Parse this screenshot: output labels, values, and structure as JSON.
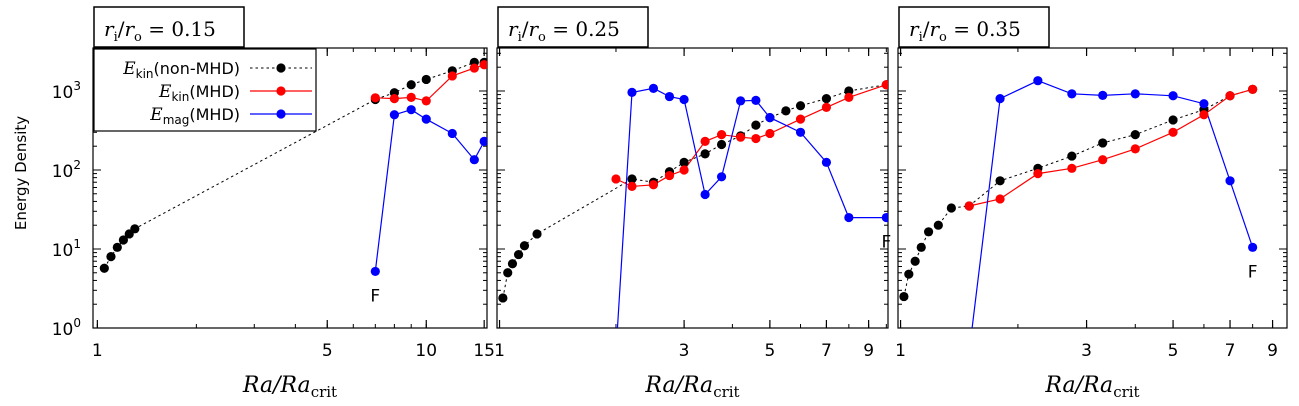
{
  "figure": {
    "ylabel": "Energy Density",
    "xlabel": {
      "main": "Ra/Ra",
      "sub": "crit"
    }
  },
  "legend": {
    "entries": [
      {
        "sym": "E",
        "sub": "kin",
        "tail": "(non-MHD)",
        "color": "#000000",
        "style": "dotted"
      },
      {
        "sym": "E",
        "sub": "kin",
        "tail": "(MHD)",
        "color": "#ff0000",
        "style": "solid"
      },
      {
        "sym": "E",
        "sub": "mag",
        "tail": "(MHD)",
        "color": "#0000ff",
        "style": "solid"
      }
    ]
  },
  "chart_data": [
    {
      "type": "line",
      "title": {
        "num": "r",
        "num_sub": "i",
        "den": "r",
        "den_sub": "o",
        "value": "= 0.15"
      },
      "xscale": "log",
      "yscale": "log",
      "xlim": [
        0.97,
        15.3
      ],
      "ylim": [
        1,
        3500
      ],
      "xticks": [
        {
          "v": 1,
          "label": "1"
        },
        {
          "v": 5,
          "label": "5"
        },
        {
          "v": 10,
          "label": "10"
        },
        {
          "v": 15,
          "label": "15"
        }
      ],
      "yticks": [
        {
          "v": 1,
          "e": "0"
        },
        {
          "v": 10,
          "e": "1"
        },
        {
          "v": 100,
          "e": "2"
        },
        {
          "v": 1000,
          "e": "3"
        }
      ],
      "series": [
        {
          "name": "Ekin(non-MHD)",
          "color": "#000000",
          "style": "dotted",
          "x": [
            1.05,
            1.1,
            1.15,
            1.2,
            1.25,
            1.3,
            7,
            8,
            9,
            10,
            12,
            14,
            15
          ],
          "y": [
            5.7,
            8,
            10.5,
            13,
            15.5,
            18,
            780,
            950,
            1200,
            1400,
            1800,
            2300,
            2300
          ]
        },
        {
          "name": "Ekin(MHD)",
          "color": "#ff0000",
          "style": "solid",
          "x": [
            7,
            8,
            9,
            10,
            12,
            14,
            15
          ],
          "y": [
            820,
            800,
            830,
            750,
            1550,
            1950,
            2150
          ]
        },
        {
          "name": "Emag(MHD)",
          "color": "#0000ff",
          "style": "solid",
          "x": [
            7,
            8,
            9,
            10,
            12,
            14,
            15
          ],
          "y": [
            5.2,
            500,
            580,
            440,
            290,
            135,
            230
          ]
        }
      ],
      "annotations": [
        {
          "text": "F",
          "x": 7,
          "y": 5.2,
          "dy": 30
        }
      ]
    },
    {
      "type": "line",
      "title": {
        "num": "r",
        "num_sub": "i",
        "den": "r",
        "den_sub": "o",
        "value": "= 0.25"
      },
      "xscale": "log",
      "yscale": "log",
      "xlim": [
        0.985,
        10.1
      ],
      "ylim": [
        1,
        3500
      ],
      "xticks": [
        {
          "v": 1,
          "label": "1"
        },
        {
          "v": 3,
          "label": "3"
        },
        {
          "v": 5,
          "label": "5"
        },
        {
          "v": 7,
          "label": "7"
        },
        {
          "v": 9,
          "label": "9"
        }
      ],
      "yticks": [],
      "series": [
        {
          "name": "Ekin(non-MHD)",
          "color": "#000000",
          "style": "dotted",
          "x": [
            1.02,
            1.05,
            1.08,
            1.12,
            1.16,
            1.25,
            2.2,
            2.5,
            2.75,
            3,
            3.4,
            3.75,
            4.2,
            4.6,
            5,
            5.5,
            6,
            7,
            8,
            10
          ],
          "y": [
            2.4,
            5,
            6.5,
            8.5,
            11,
            15.5,
            77,
            70,
            95,
            125,
            160,
            210,
            270,
            370,
            460,
            560,
            650,
            800,
            1000,
            1200
          ]
        },
        {
          "name": "Ekin(MHD)",
          "color": "#ff0000",
          "style": "solid",
          "x": [
            2,
            2.2,
            2.5,
            2.75,
            3,
            3.4,
            3.75,
            4.2,
            4.6,
            5,
            6,
            7,
            8,
            10
          ],
          "y": [
            77,
            62,
            65,
            85,
            100,
            230,
            280,
            260,
            250,
            290,
            440,
            620,
            830,
            1200
          ]
        },
        {
          "name": "Emag(MHD)",
          "color": "#0000ff",
          "style": "solid",
          "x": [
            2,
            2.2,
            2.5,
            2.75,
            3,
            3.4,
            3.75,
            4.2,
            4.6,
            5,
            6,
            7,
            8,
            10
          ],
          "y": [
            0.5,
            960,
            1080,
            850,
            780,
            49,
            82,
            750,
            760,
            460,
            300,
            125,
            25,
            25
          ]
        }
      ],
      "annotations": [
        {
          "text": "F",
          "x": 10,
          "y": 25,
          "dy": 30
        }
      ]
    },
    {
      "type": "line",
      "title": {
        "num": "r",
        "num_sub": "i",
        "den": "r",
        "den_sub": "o",
        "value": "= 0.35"
      },
      "xscale": "log",
      "yscale": "log",
      "xlim": [
        0.985,
        9.8
      ],
      "ylim": [
        1,
        3500
      ],
      "xticks": [
        {
          "v": 1,
          "label": "1"
        },
        {
          "v": 3,
          "label": "3"
        },
        {
          "v": 5,
          "label": "5"
        },
        {
          "v": 7,
          "label": "7"
        },
        {
          "v": 9,
          "label": "9"
        }
      ],
      "yticks": [],
      "series": [
        {
          "name": "Ekin(non-MHD)",
          "color": "#000000",
          "style": "dotted",
          "x": [
            1.02,
            1.05,
            1.09,
            1.13,
            1.18,
            1.25,
            1.35,
            1.5,
            1.8,
            2.25,
            2.75,
            3.3,
            4,
            5,
            6,
            7,
            8
          ],
          "y": [
            2.5,
            4.8,
            7,
            10.5,
            16.5,
            20,
            33,
            35,
            73,
            105,
            150,
            220,
            280,
            430,
            580,
            870,
            1050
          ]
        },
        {
          "name": "Ekin(MHD)",
          "color": "#ff0000",
          "style": "solid",
          "x": [
            1.5,
            1.8,
            2.25,
            2.75,
            3.3,
            4,
            5,
            6,
            7,
            8
          ],
          "y": [
            35,
            43,
            90,
            105,
            135,
            185,
            300,
            500,
            870,
            1050
          ]
        },
        {
          "name": "Emag(MHD)",
          "color": "#0000ff",
          "style": "solid",
          "x": [
            1.5,
            1.8,
            2.25,
            2.75,
            3.3,
            4,
            5,
            6,
            7,
            8
          ],
          "y": [
            0.5,
            800,
            1350,
            920,
            880,
            920,
            870,
            690,
            73,
            10.5
          ]
        }
      ],
      "annotations": [
        {
          "text": "F",
          "x": 8,
          "y": 10.5,
          "dy": 30
        }
      ]
    }
  ]
}
